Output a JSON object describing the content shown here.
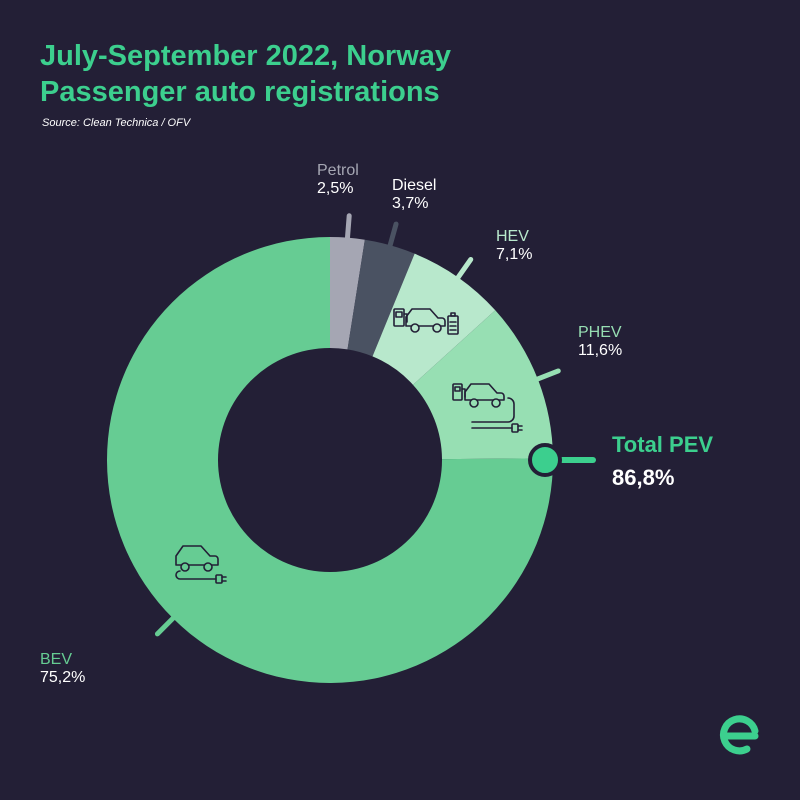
{
  "header": {
    "title_line1": "July-September 2022, Norway",
    "title_line2": "Passenger auto registrations",
    "source": "Source: Clean Technica / OFV"
  },
  "total": {
    "label": "Total PEV",
    "value": "86,8%"
  },
  "colors": {
    "background": "#231f36",
    "accent": "#3ccf8e",
    "petrol": "#a5a6b3",
    "diesel": "#4a5262",
    "hev": "#b8e8cc",
    "phev": "#97dfb3",
    "bev": "#66cc93"
  },
  "icons": [
    "hybrid-car-icon",
    "plugin-hybrid-car-icon",
    "electric-car-icon",
    "brand-logo-icon"
  ],
  "chart_data": {
    "type": "pie",
    "subtype": "donut",
    "series": [
      {
        "name": "Petrol",
        "label": "2,5%",
        "value": 2.5,
        "color": "#a5a6b3"
      },
      {
        "name": "Diesel",
        "label": "3,7%",
        "value": 3.7,
        "color": "#4a5262"
      },
      {
        "name": "HEV",
        "label": "7,1%",
        "value": 7.1,
        "color": "#b8e8cc"
      },
      {
        "name": "PHEV",
        "label": "11,6%",
        "value": 11.6,
        "color": "#97dfb3"
      },
      {
        "name": "BEV",
        "label": "75,2%",
        "value": 75.2,
        "color": "#66cc93"
      }
    ]
  }
}
